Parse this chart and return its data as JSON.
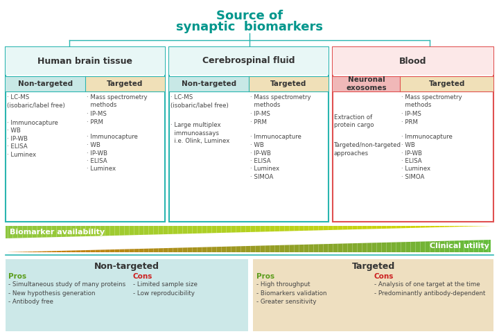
{
  "title_line1": "Source of",
  "title_line2": "synaptic  biomarkers",
  "title_color": "#00968c",
  "bg_color": "#ffffff",
  "biomarker_label": "Biomarker availability",
  "clinical_label": "Clinical utility",
  "bottom_left_title": "Non-targeted",
  "bottom_right_title": "Targeted",
  "bottom_left_bg": "#cce8e8",
  "bottom_right_bg": "#eedfc0",
  "pros_color": "#5a9c1a",
  "cons_color": "#cc2020",
  "nt_pros": [
    "- Simultaneous study of many proteins",
    "- New hypothesis generation",
    "- Antibody free"
  ],
  "nt_cons": [
    "- Limited sample size",
    "- Low reproducibility"
  ],
  "t_pros": [
    "- High throughput",
    "- Biomarkers validation",
    "- Greater sensitivity"
  ],
  "t_cons": [
    "- Analysis of one target at the time",
    "- Predominantly antibody-dependent"
  ],
  "teal": "#2ab5b0",
  "red_border": "#e05050",
  "pink_bg": "#fce8e8",
  "teal_bg": "#e8f7f6",
  "pink_header": "#f0b8b8",
  "col_div": "#cccccc",
  "text_dark": "#444444"
}
